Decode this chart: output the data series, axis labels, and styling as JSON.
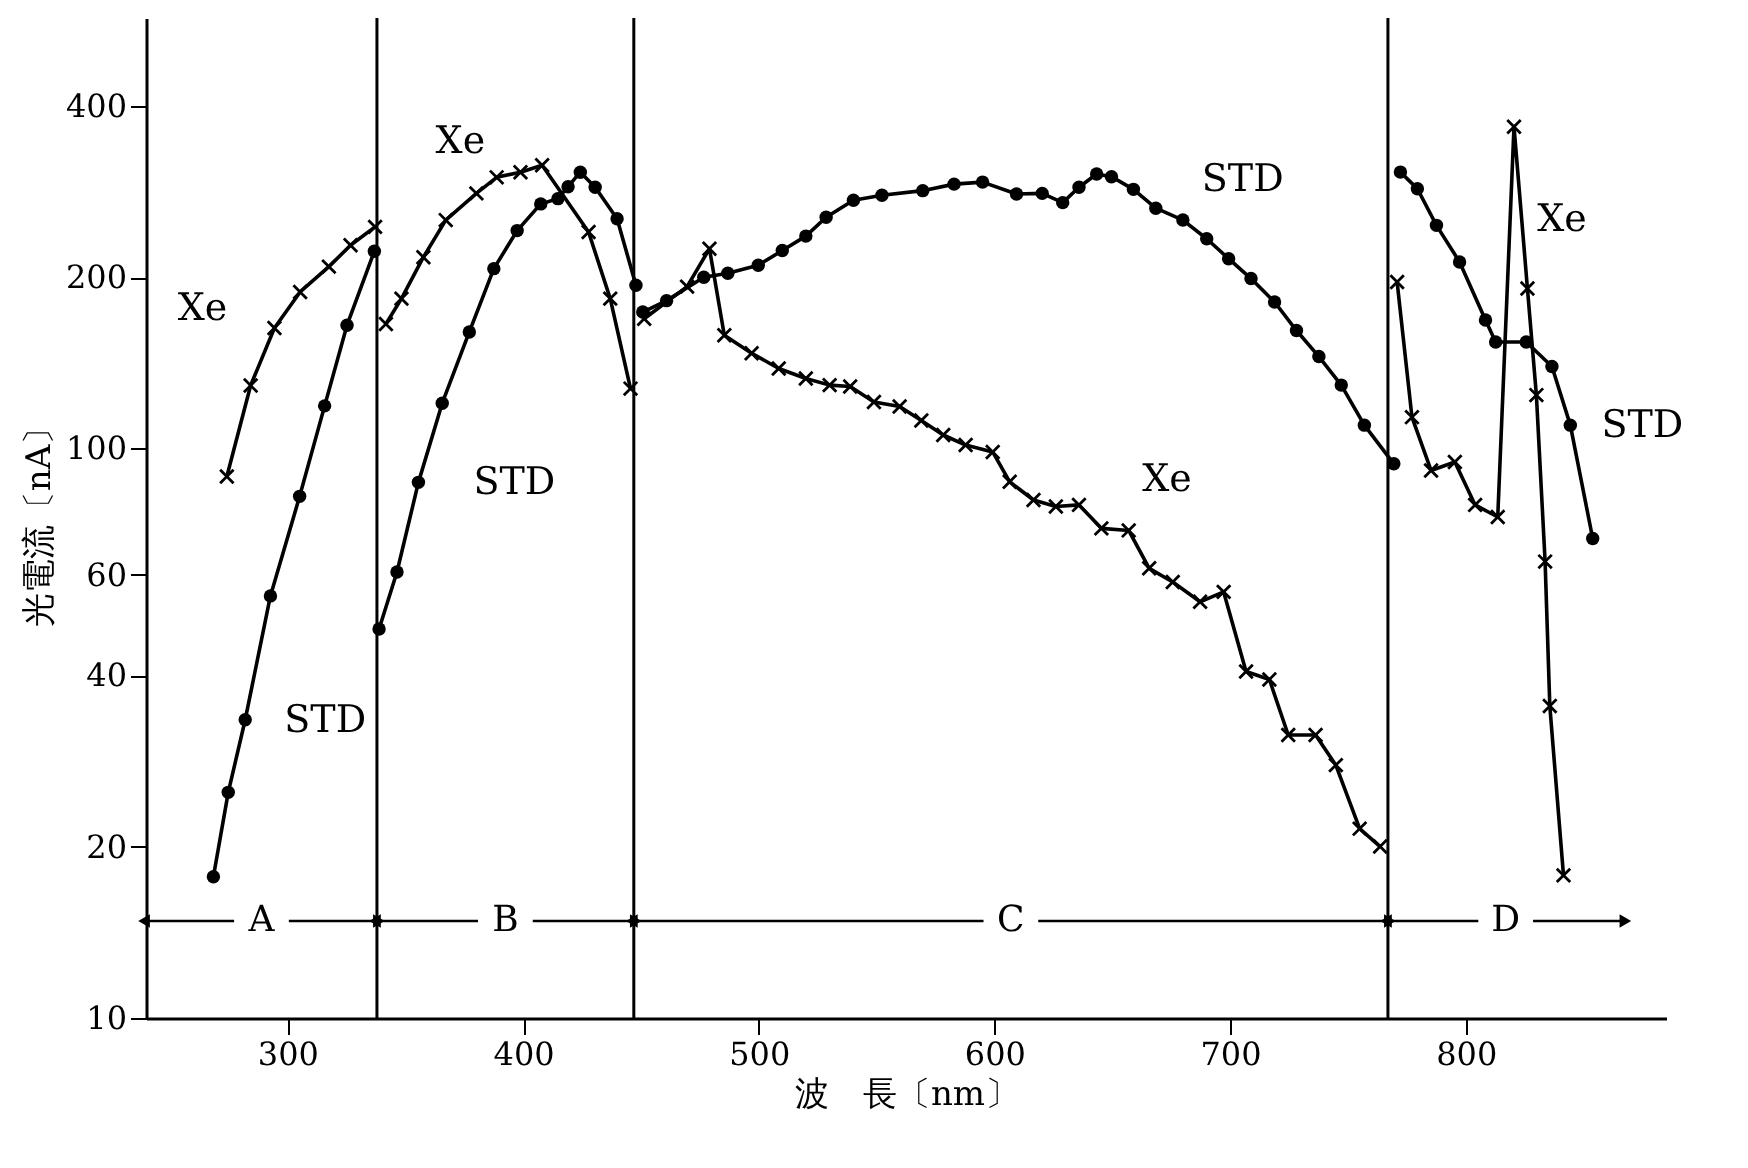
{
  "chart_data": {
    "type": "line",
    "xlabel": "波　長〔nm〕",
    "ylabel": "光電流〔nA〕",
    "log": "y",
    "grid": false,
    "xlim": [
      240,
      885
    ],
    "xticks": [
      300,
      400,
      500,
      600,
      700,
      800
    ],
    "ylim": [
      10,
      570
    ],
    "yticks": [
      10,
      20,
      40,
      60,
      100,
      200,
      400
    ],
    "series": [
      {
        "name": "STD",
        "color": "#000000",
        "marker": "circle",
        "line_style": "solid",
        "x": [
          268.6,
          274.9,
          282.1,
          292.8,
          305.2,
          315.8,
          325.3,
          336.9
        ],
        "values": [
          17.7,
          24.9,
          33.4,
          55.1,
          82.4,
          118.8,
          164.6,
          222
        ]
      },
      {
        "name": "Xe",
        "color": "#000000",
        "marker": "cross",
        "line_style": "solid",
        "x": [
          274.3,
          284.4,
          294.5,
          305.4,
          317.6,
          326.8,
          337.2
        ],
        "values": [
          89.3,
          129,
          162.8,
          188.3,
          208.6,
          227.4,
          245
        ]
      },
      {
        "name": "STD",
        "color": "#000000",
        "marker": "circle",
        "line_style": "solid",
        "x": [
          338.9,
          346.5,
          355.6,
          365.7,
          377.2,
          387.6,
          397.5,
          407.5,
          414.8,
          419.1,
          424.3,
          430.6,
          439.9,
          447.9
        ],
        "values": [
          48.2,
          60.7,
          87.2,
          120.1,
          160.2,
          206.9,
          241.3,
          268.8,
          274.6,
          288.2,
          305.6,
          287.5,
          253.2,
          193.5
        ]
      },
      {
        "name": "Xe",
        "color": "#000000",
        "marker": "cross",
        "line_style": "solid",
        "x": [
          341.8,
          348.4,
          357.7,
          367.2,
          380.2,
          388.8,
          398.9,
          408.1,
          427.8,
          437,
          445.6
        ],
        "values": [
          165.4,
          183.3,
          216.7,
          251.8,
          280.5,
          299.3,
          305.6,
          314.2,
          239.9,
          183.3,
          127.4
        ]
      },
      {
        "name": "STD",
        "color": "#000000",
        "marker": "circle",
        "line_style": "solid",
        "x": [
          450.8,
          460.9,
          476.7,
          486.9,
          499.8,
          510,
          520,
          528.6,
          540.2,
          552.3,
          569.6,
          582.9,
          595,
          609.4,
          620.3,
          629,
          635.9,
          643.4,
          649.7,
          659,
          668.5,
          680,
          690.1,
          699.4,
          708.9,
          718.9,
          728.2,
          737.7,
          747.2,
          757,
          769.5
        ],
        "values": [
          173.6,
          181.8,
          199.8,
          203.1,
          209.8,
          222.6,
          236,
          254.7,
          272.9,
          278.4,
          283.6,
          291.2,
          293.6,
          279.8,
          280.5,
          270.2,
          287.5,
          303.3,
          300.1,
          285.1,
          264.2,
          251.8,
          233.5,
          215.4,
          198.8,
          180.8,
          161.1,
          145,
          129.2,
          109.9,
          94
        ]
      },
      {
        "name": "Xe",
        "color": "#000000",
        "marker": "cross",
        "line_style": "solid",
        "x": [
          451.4,
          469.6,
          479.1,
          485.4,
          497,
          508.5,
          520,
          530.1,
          538.8,
          548.9,
          559.8,
          569,
          578.3,
          587.8,
          599.3,
          606.5,
          616.6,
          626.1,
          635.9,
          645.4,
          657,
          665.7,
          675.7,
          687.3,
          697.3,
          706.8,
          716.7,
          724.7,
          736.3,
          744.9,
          755,
          763.7
        ],
        "values": [
          169,
          192.4,
          224.3,
          158.1,
          147,
          138.2,
          132.7,
          129.2,
          128.5,
          120.7,
          118.5,
          112,
          105.6,
          101.4,
          98.6,
          87.4,
          81.2,
          79.1,
          79.6,
          72.4,
          71.8,
          61.6,
          58.3,
          53.8,
          56,
          40.6,
          39.3,
          31.4,
          31.4,
          27.8,
          21.5,
          20
        ]
      },
      {
        "name": "STD",
        "color": "#000000",
        "marker": "circle",
        "line_style": "solid",
        "x": [
          772.3,
          779.5,
          787.6,
          797.4,
          808.4,
          812.7,
          825.7,
          836.6,
          844.4,
          853.9
        ],
        "values": [
          305.7,
          285.8,
          246.5,
          212.6,
          168.1,
          153.8,
          153.8,
          139.3,
          109.9,
          69.5
        ]
      },
      {
        "name": "Xe",
        "color": "#000000",
        "marker": "cross",
        "line_style": "solid",
        "x": [
          770.9,
          777.2,
          785.3,
          795.4,
          804,
          813.6,
          820.5,
          826.2,
          830,
          833.7,
          835.7,
          841.5
        ],
        "values": [
          196,
          113.5,
          91.5,
          94.7,
          79.6,
          75.8,
          367.3,
          190.9,
          124.1,
          63.3,
          35.3,
          17.8
        ]
      }
    ],
    "ref_lines": [
      {
        "axis": "x",
        "value": 338
      },
      {
        "axis": "x",
        "value": 447
      },
      {
        "axis": "x",
        "value": 767
      }
    ],
    "annotations": [
      {
        "text": "A",
        "x": 338,
        "y": 14.8
      },
      {
        "text": "B",
        "x": 447,
        "y": 14.8
      },
      {
        "text": "C",
        "x": 767,
        "y": 14.8
      },
      {
        "text": "D",
        "x": 767,
        "y": 14.8
      }
    ]
  }
}
